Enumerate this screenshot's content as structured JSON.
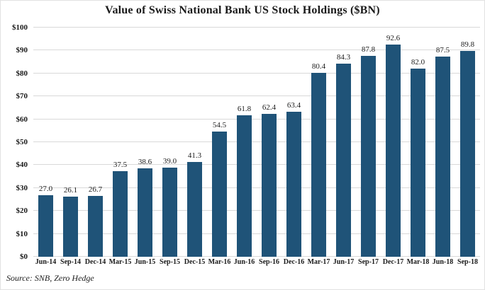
{
  "page": {
    "title": "Value of Swiss National Bank US Stock Holdings ($BN)",
    "source_note": "Source: SNB, Zero Hedge"
  },
  "colors": {
    "bar": "#1f5378",
    "grid": "#d9d9d9",
    "text": "#1a1a1a",
    "background": "#ffffff"
  },
  "chart_data": {
    "type": "bar",
    "title": "Value of Swiss National Bank US Stock Holdings ($BN)",
    "categories": [
      "Jun-14",
      "Sep-14",
      "Dec-14",
      "Mar-15",
      "Jun-15",
      "Sep-15",
      "Dec-15",
      "Mar-16",
      "Jun-16",
      "Sep-16",
      "Dec-16",
      "Mar-17",
      "Jun-17",
      "Sep-17",
      "Dec-17",
      "Mar-18",
      "Jun-18",
      "Sep-18"
    ],
    "values": [
      27.0,
      26.1,
      26.7,
      37.5,
      38.6,
      39.0,
      41.3,
      54.5,
      61.8,
      62.4,
      63.4,
      80.4,
      84.3,
      87.8,
      92.6,
      82.0,
      87.5,
      89.8
    ],
    "value_labels": [
      "27.0",
      "26.1",
      "26.7",
      "37.5",
      "38.6",
      "39.0",
      "41.3",
      "54.5",
      "61.8",
      "62.4",
      "63.4",
      "80.4",
      "84.3",
      "87.8",
      "92.6",
      "82.0",
      "87.5",
      "89.8"
    ],
    "xlabel": "",
    "ylabel": "",
    "ylim": [
      0,
      100
    ],
    "ytick_values": [
      0,
      10,
      20,
      30,
      40,
      50,
      60,
      70,
      80,
      90,
      100
    ],
    "ytick_labels": [
      "$0",
      "$10",
      "$20",
      "$30",
      "$40",
      "$50",
      "$60",
      "$70",
      "$80",
      "$90",
      "$100"
    ],
    "grid": true,
    "legend": false,
    "data_labels_shown": true,
    "source": "Source: SNB, Zero Hedge"
  }
}
